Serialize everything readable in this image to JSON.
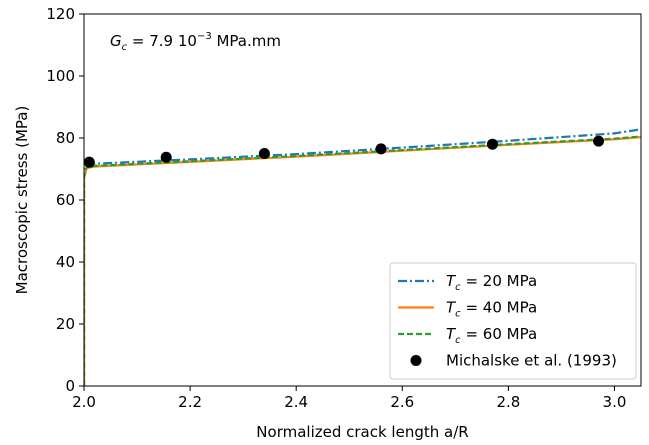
{
  "chart_data": {
    "type": "line",
    "title": "",
    "xlabel": "Normalized crack length a/R",
    "ylabel": "Macroscopic stress (MPa)",
    "xlim": [
      2.0,
      3.05
    ],
    "ylim": [
      0,
      120
    ],
    "xticks": [
      2.0,
      2.2,
      2.4,
      2.6,
      2.8,
      3.0
    ],
    "xtick_labels": [
      "2.0",
      "2.2",
      "2.4",
      "2.6",
      "2.8",
      "3.0"
    ],
    "yticks": [
      0,
      20,
      40,
      60,
      80,
      100,
      120
    ],
    "ytick_labels": [
      "0",
      "20",
      "40",
      "60",
      "80",
      "100",
      "120"
    ],
    "grid": false,
    "legend_position": "bottom-right",
    "annotation": {
      "symbol": "G",
      "subscript": "c",
      "text": " = 7.9 10",
      "exponent": "−3",
      "unit": " MPa.mm"
    },
    "series": [
      {
        "symbol": "T",
        "subscript": "c",
        "label_value": " = 20 MPa",
        "style": "dashdot",
        "color": "#1f77b4",
        "x": [
          2.0,
          2.0,
          2.005,
          2.02,
          2.2,
          2.4,
          2.6,
          2.8,
          3.0,
          3.05
        ],
        "y": [
          0,
          68,
          71.3,
          71.7,
          73.1,
          74.8,
          76.9,
          79.1,
          81.5,
          82.8
        ]
      },
      {
        "symbol": "T",
        "subscript": "c",
        "label_value": " = 40 MPa",
        "style": "solid",
        "color": "#ff7f0e",
        "x": [
          2.0,
          2.0,
          2.005,
          2.02,
          2.2,
          2.4,
          2.6,
          2.8,
          3.0,
          3.05
        ],
        "y": [
          0,
          67,
          70.3,
          70.8,
          72.3,
          74.0,
          75.9,
          77.8,
          79.6,
          80.3
        ]
      },
      {
        "symbol": "T",
        "subscript": "c",
        "label_value": " = 60 MPa",
        "style": "dashed",
        "color": "#2ca02c",
        "x": [
          2.0,
          2.0,
          2.005,
          2.02,
          2.2,
          2.4,
          2.6,
          2.8,
          3.0,
          3.05
        ],
        "y": [
          0,
          67.5,
          70.6,
          71.0,
          72.5,
          74.2,
          76.1,
          78.0,
          79.8,
          80.5
        ]
      },
      {
        "name": "Michalske et al. (1993)",
        "style": "markers",
        "color": "#000000",
        "x": [
          2.01,
          2.155,
          2.34,
          2.56,
          2.77,
          2.97
        ],
        "y": [
          72.2,
          73.8,
          75.0,
          76.5,
          78.0,
          79.0
        ]
      }
    ]
  }
}
